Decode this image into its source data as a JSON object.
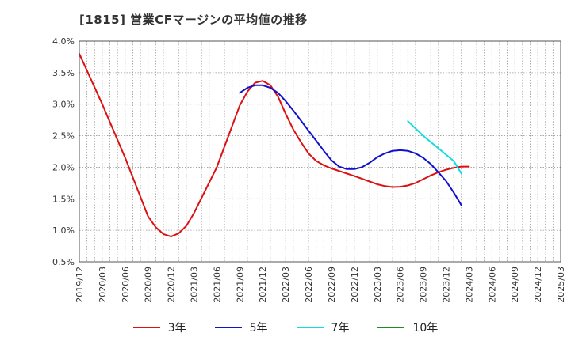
{
  "chart_data": {
    "type": "line",
    "title": "[1815]  営業CFマージンの平均値の推移",
    "xlabel": "",
    "ylabel": "",
    "ylim": [
      0.5,
      4.0
    ],
    "y_ticks": [
      "0.5%",
      "1.0%",
      "1.5%",
      "2.0%",
      "2.5%",
      "3.0%",
      "3.5%",
      "4.0%"
    ],
    "y_tick_values": [
      0.5,
      1.0,
      1.5,
      2.0,
      2.5,
      3.0,
      3.5,
      4.0
    ],
    "x_ticks": [
      "2019/12",
      "2020/03",
      "2020/06",
      "2020/09",
      "2020/12",
      "2021/03",
      "2021/06",
      "2021/09",
      "2021/12",
      "2022/03",
      "2022/06",
      "2022/09",
      "2022/12",
      "2023/03",
      "2023/06",
      "2023/09",
      "2023/12",
      "2024/03",
      "2024/06",
      "2024/09",
      "2024/12",
      "2025/03"
    ],
    "grid": true,
    "legend_position": "bottom",
    "series": [
      {
        "name": "3年",
        "color": "#dd1111",
        "points": [
          [
            "2019/12",
            3.8
          ],
          [
            "2020/03",
            3.0
          ],
          [
            "2020/06",
            2.15
          ],
          [
            "2020/09",
            1.22
          ],
          [
            "2020/10",
            1.05
          ],
          [
            "2020/11",
            0.94
          ],
          [
            "2020/12",
            0.9
          ],
          [
            "2021/01",
            0.95
          ],
          [
            "2021/02",
            1.07
          ],
          [
            "2021/03",
            1.27
          ],
          [
            "2021/06",
            2.0
          ],
          [
            "2021/09",
            2.98
          ],
          [
            "2021/10",
            3.2
          ],
          [
            "2021/11",
            3.34
          ],
          [
            "2021/12",
            3.37
          ],
          [
            "2022/01",
            3.3
          ],
          [
            "2022/02",
            3.12
          ],
          [
            "2022/03",
            2.85
          ],
          [
            "2022/04",
            2.6
          ],
          [
            "2022/05",
            2.4
          ],
          [
            "2022/06",
            2.22
          ],
          [
            "2022/07",
            2.1
          ],
          [
            "2022/08",
            2.03
          ],
          [
            "2022/09",
            1.98
          ],
          [
            "2022/12",
            1.86
          ],
          [
            "2023/03",
            1.73
          ],
          [
            "2023/04",
            1.7
          ],
          [
            "2023/05",
            1.685
          ],
          [
            "2023/06",
            1.69
          ],
          [
            "2023/07",
            1.71
          ],
          [
            "2023/08",
            1.75
          ],
          [
            "2023/09",
            1.81
          ],
          [
            "2023/10",
            1.87
          ],
          [
            "2023/11",
            1.92
          ],
          [
            "2023/12",
            1.96
          ],
          [
            "2024/01",
            1.99
          ],
          [
            "2024/02",
            2.01
          ],
          [
            "2024/03",
            2.01
          ]
        ]
      },
      {
        "name": "5年",
        "color": "#1111cc",
        "points": [
          [
            "2021/09",
            3.18
          ],
          [
            "2021/10",
            3.26
          ],
          [
            "2021/11",
            3.3
          ],
          [
            "2021/12",
            3.3
          ],
          [
            "2022/01",
            3.26
          ],
          [
            "2022/02",
            3.18
          ],
          [
            "2022/03",
            3.05
          ],
          [
            "2022/04",
            2.9
          ],
          [
            "2022/05",
            2.74
          ],
          [
            "2022/06",
            2.58
          ],
          [
            "2022/07",
            2.42
          ],
          [
            "2022/08",
            2.26
          ],
          [
            "2022/09",
            2.11
          ],
          [
            "2022/10",
            2.01
          ],
          [
            "2022/11",
            1.97
          ],
          [
            "2022/12",
            1.97
          ],
          [
            "2023/01",
            2.0
          ],
          [
            "2023/02",
            2.07
          ],
          [
            "2023/03",
            2.16
          ],
          [
            "2023/04",
            2.22
          ],
          [
            "2023/05",
            2.26
          ],
          [
            "2023/06",
            2.27
          ],
          [
            "2023/07",
            2.26
          ],
          [
            "2023/08",
            2.22
          ],
          [
            "2023/09",
            2.15
          ],
          [
            "2023/10",
            2.05
          ],
          [
            "2023/11",
            1.92
          ],
          [
            "2023/12",
            1.78
          ],
          [
            "2024/01",
            1.6
          ],
          [
            "2024/02",
            1.4
          ]
        ]
      },
      {
        "name": "7年",
        "color": "#11dddd",
        "points": [
          [
            "2023/07",
            2.73
          ],
          [
            "2023/09",
            2.5
          ],
          [
            "2023/11",
            2.3
          ],
          [
            "2024/01",
            2.1
          ],
          [
            "2024/02",
            1.9
          ]
        ]
      },
      {
        "name": "10年",
        "color": "#228822",
        "points": []
      }
    ]
  }
}
